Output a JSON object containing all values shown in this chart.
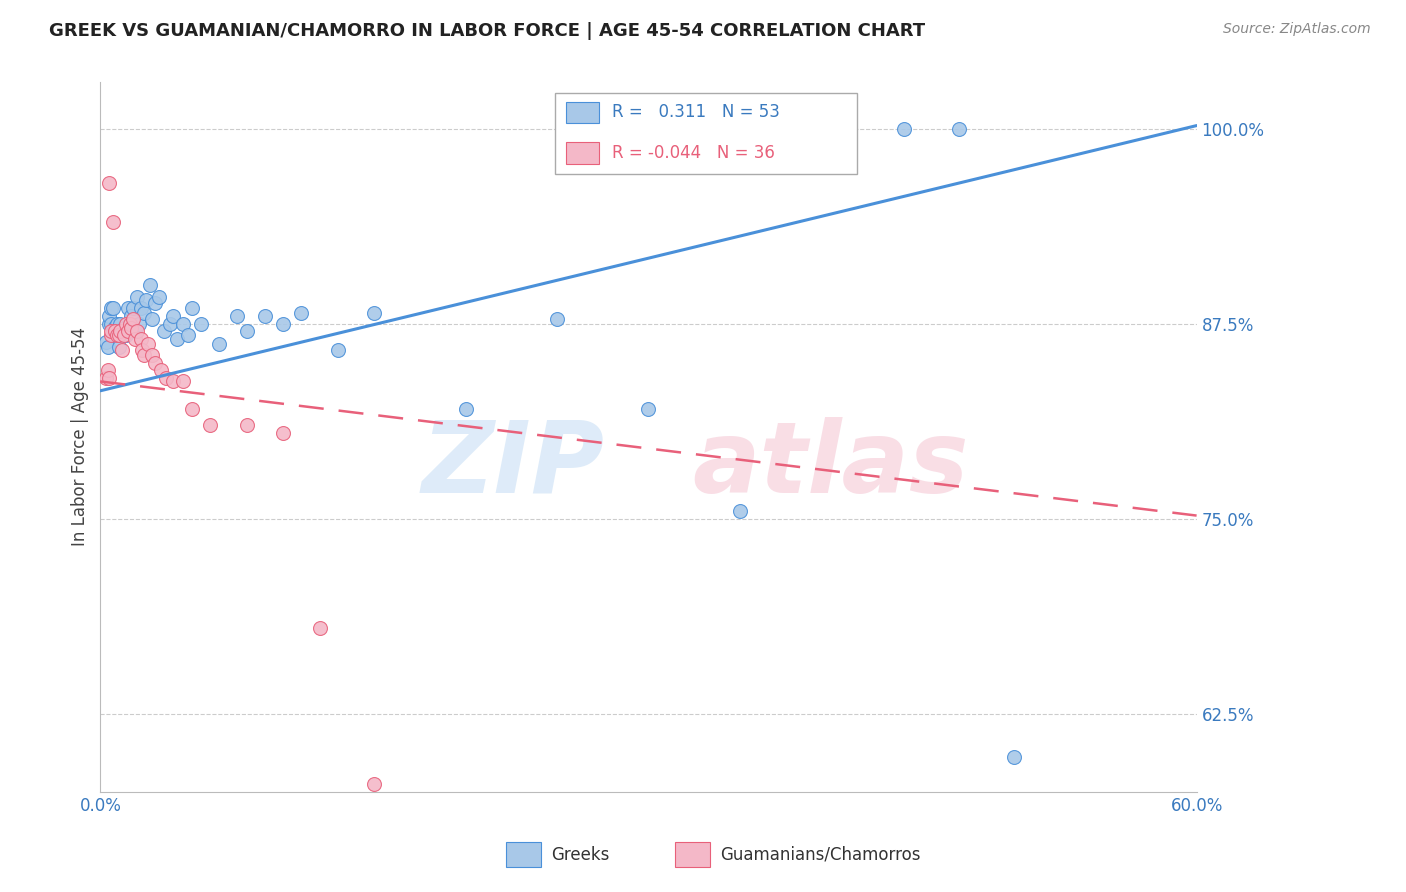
{
  "title": "GREEK VS GUAMANIAN/CHAMORRO IN LABOR FORCE | AGE 45-54 CORRELATION CHART",
  "source": "Source: ZipAtlas.com",
  "ylabel": "In Labor Force | Age 45-54",
  "xlim": [
    0.0,
    0.6
  ],
  "ylim": [
    0.575,
    1.03
  ],
  "xticks": [
    0.0,
    0.1,
    0.2,
    0.3,
    0.4,
    0.5,
    0.6
  ],
  "xticklabels": [
    "0.0%",
    "",
    "",
    "",
    "",
    "",
    "60.0%"
  ],
  "yticks": [
    0.625,
    0.75,
    0.875,
    1.0
  ],
  "yticklabels": [
    "62.5%",
    "75.0%",
    "87.5%",
    "100.0%"
  ],
  "blue_R": 0.311,
  "blue_N": 53,
  "pink_R": -0.044,
  "pink_N": 36,
  "blue_color": "#a8c8e8",
  "pink_color": "#f4b8c8",
  "blue_line_color": "#4a90d9",
  "pink_line_color": "#e8607a",
  "legend_blue_label": "Greeks",
  "legend_pink_label": "Guamanians/Chamorros",
  "blue_line_x0": 0.0,
  "blue_line_x1": 0.6,
  "blue_line_y0": 0.832,
  "blue_line_y1": 1.002,
  "pink_line_x0": 0.0,
  "pink_line_x1": 0.6,
  "pink_line_y0": 0.838,
  "pink_line_y1": 0.752,
  "blue_scatter_x": [
    0.003,
    0.004,
    0.005,
    0.005,
    0.006,
    0.006,
    0.007,
    0.007,
    0.008,
    0.009,
    0.01,
    0.01,
    0.011,
    0.012,
    0.013,
    0.014,
    0.015,
    0.016,
    0.017,
    0.018,
    0.019,
    0.02,
    0.021,
    0.022,
    0.024,
    0.025,
    0.027,
    0.028,
    0.03,
    0.032,
    0.035,
    0.038,
    0.04,
    0.042,
    0.045,
    0.048,
    0.05,
    0.055,
    0.065,
    0.075,
    0.08,
    0.09,
    0.1,
    0.11,
    0.13,
    0.15,
    0.2,
    0.25,
    0.3,
    0.35,
    0.44,
    0.47,
    0.5
  ],
  "blue_scatter_y": [
    0.863,
    0.86,
    0.875,
    0.88,
    0.875,
    0.885,
    0.87,
    0.885,
    0.873,
    0.875,
    0.86,
    0.87,
    0.875,
    0.87,
    0.872,
    0.868,
    0.885,
    0.875,
    0.88,
    0.885,
    0.87,
    0.892,
    0.875,
    0.885,
    0.882,
    0.89,
    0.9,
    0.878,
    0.888,
    0.892,
    0.87,
    0.875,
    0.88,
    0.865,
    0.875,
    0.868,
    0.885,
    0.875,
    0.862,
    0.88,
    0.87,
    0.88,
    0.875,
    0.882,
    0.858,
    0.882,
    0.82,
    0.878,
    0.82,
    0.755,
    1.0,
    1.0,
    0.597
  ],
  "pink_scatter_x": [
    0.003,
    0.004,
    0.005,
    0.005,
    0.006,
    0.006,
    0.007,
    0.008,
    0.009,
    0.01,
    0.011,
    0.012,
    0.013,
    0.014,
    0.015,
    0.016,
    0.017,
    0.018,
    0.019,
    0.02,
    0.022,
    0.023,
    0.024,
    0.026,
    0.028,
    0.03,
    0.033,
    0.036,
    0.04,
    0.045,
    0.05,
    0.06,
    0.08,
    0.1,
    0.12,
    0.15
  ],
  "pink_scatter_y": [
    0.84,
    0.845,
    0.84,
    0.965,
    0.868,
    0.87,
    0.94,
    0.87,
    0.868,
    0.868,
    0.87,
    0.858,
    0.868,
    0.875,
    0.87,
    0.875,
    0.872,
    0.878,
    0.865,
    0.87,
    0.865,
    0.858,
    0.855,
    0.862,
    0.855,
    0.85,
    0.845,
    0.84,
    0.838,
    0.838,
    0.82,
    0.81,
    0.81,
    0.805,
    0.68,
    0.58
  ]
}
